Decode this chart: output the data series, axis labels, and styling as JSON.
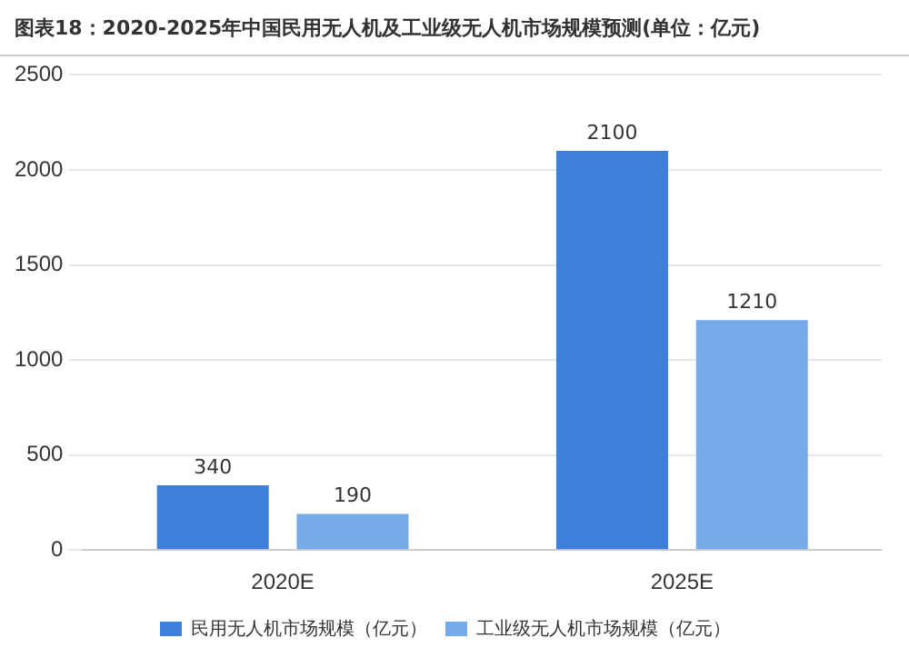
{
  "chart_data": {
    "type": "bar",
    "title": "图表18：2020-2025年中国民用无人机及工业级无人机市场规模预测(单位：亿元)",
    "categories": [
      "2020E",
      "2025E"
    ],
    "series": [
      {
        "name": "民用无人机市场规模（亿元）",
        "color": "#3d7fdc",
        "values": [
          340,
          2100
        ]
      },
      {
        "name": "工业级无人机市场规模（亿元）",
        "color": "#76a9ea",
        "values": [
          190,
          1210
        ]
      }
    ],
    "ylim": [
      0,
      2500
    ],
    "yticks": [
      0,
      500,
      1000,
      1500,
      2000,
      2500
    ],
    "grid": "y",
    "legend": "bottom",
    "data_labels": true
  }
}
